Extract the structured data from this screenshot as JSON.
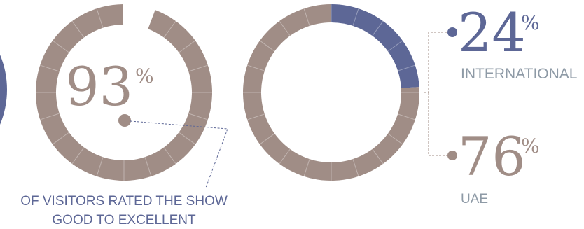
{
  "colors": {
    "taupe": "#a08d86",
    "navy": "#5d6796",
    "label_grey": "#8e9aa6"
  },
  "chart_data": [
    {
      "type": "pie",
      "subtype": "donut",
      "values": [
        93,
        7
      ],
      "value_label": "93",
      "percent_sign": "%",
      "caption_lines": [
        "OF VISITORS RATED THE SHOW",
        "GOOD TO EXCELLENT"
      ]
    },
    {
      "type": "pie",
      "subtype": "donut",
      "slices": [
        {
          "label": "INTERNATIONAL",
          "value": 24,
          "value_label": "24",
          "color": "#5d6796"
        },
        {
          "label": "UAE",
          "value": 76,
          "value_label": "76",
          "color": "#a08d86"
        }
      ],
      "percent_sign": "%"
    }
  ]
}
